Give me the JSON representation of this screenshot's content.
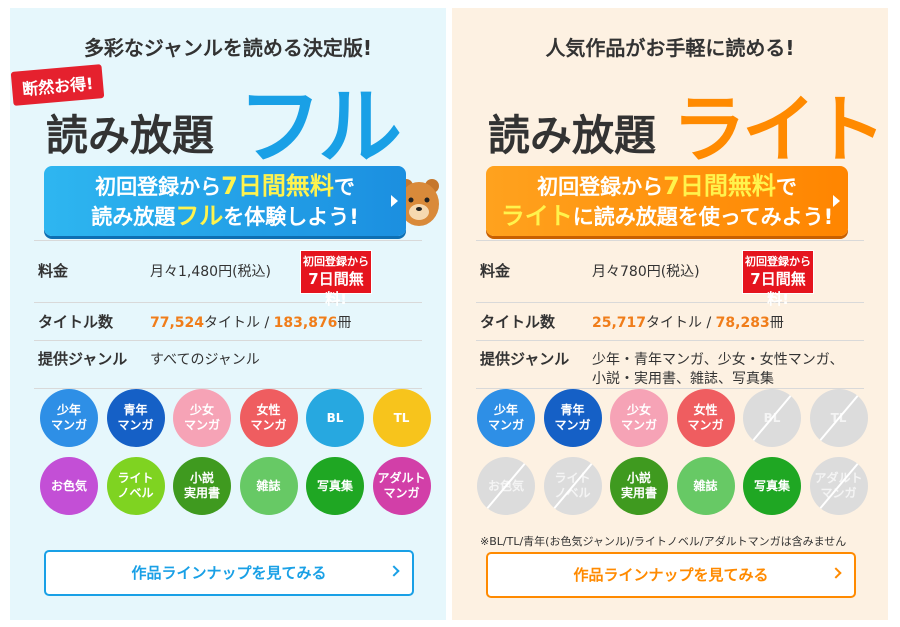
{
  "panels": [
    {
      "tagline": "多彩なジャンルを読める決定版!",
      "badge": "断然お得!",
      "title": "読み放題",
      "title_accent": "フル",
      "cta": {
        "line1": [
          {
            "text": "初回登録から"
          },
          {
            "text": "7日間",
            "highlight": true
          },
          {
            "text": "無料",
            "highlight": true
          },
          {
            "text": "で"
          }
        ],
        "line2": [
          {
            "text": "読み放題"
          },
          {
            "text": "フル",
            "highlight": true
          },
          {
            "text": "を体験しよう!"
          }
        ]
      },
      "price": {
        "label": "料金",
        "value": "月々1,480円(税込)",
        "badge": [
          "初回登録から",
          "7日間無料!"
        ]
      },
      "titles": {
        "label": "タイトル数",
        "count": "77,524",
        "unit1": "タイトル /",
        "volumes": "183,876",
        "unit2": "冊"
      },
      "genre": {
        "label": "提供ジャンル",
        "value": [
          "すべてのジャンル"
        ]
      },
      "genres": [
        {
          "lines": [
            "少年",
            "マンガ"
          ],
          "color": "#2e8fe6"
        },
        {
          "lines": [
            "青年",
            "マンガ"
          ],
          "color": "#1560c6"
        },
        {
          "lines": [
            "少女",
            "マンガ"
          ],
          "color": "#f6a3b6"
        },
        {
          "lines": [
            "女性",
            "マンガ"
          ],
          "color": "#ef5d60"
        },
        {
          "lines": [
            "BL"
          ],
          "color": "#27a8e0"
        },
        {
          "lines": [
            "TL"
          ],
          "color": "#f7c41c"
        },
        {
          "lines": [
            "お色気"
          ],
          "color": "#c34fd6"
        },
        {
          "lines": [
            "ライト",
            "ノベル"
          ],
          "color": "#7fd321"
        },
        {
          "lines": [
            "小説",
            "実用書"
          ],
          "color": "#3f9a1f"
        },
        {
          "lines": [
            "雑誌"
          ],
          "color": "#67c965"
        },
        {
          "lines": [
            "写真集"
          ],
          "color": "#1fa723"
        },
        {
          "lines": [
            "アダルト",
            "マンガ"
          ],
          "color": "#d23fa8"
        }
      ],
      "button": "作品ラインナップを見てみる"
    },
    {
      "tagline": "人気作品がお手軽に読める!",
      "title": "読み放題",
      "title_accent": "ライト",
      "cta": {
        "line1": [
          {
            "text": "初回登録から"
          },
          {
            "text": "7日間",
            "highlight": true
          },
          {
            "text": "無料",
            "highlight": true
          },
          {
            "text": "で"
          }
        ],
        "line2": [
          {
            "text": "ライト",
            "highlight": true
          },
          {
            "text": "に読み放題を使ってみよう!"
          }
        ]
      },
      "price": {
        "label": "料金",
        "value": "月々780円(税込)",
        "badge": [
          "初回登録から",
          "7日間無料!"
        ]
      },
      "titles": {
        "label": "タイトル数",
        "count": "25,717",
        "unit1": "タイトル /",
        "volumes": "78,283",
        "unit2": "冊"
      },
      "genre": {
        "label": "提供ジャンル",
        "value": [
          "少年・青年マンガ、少女・女性マンガ、",
          "小説・実用書、雑誌、写真集"
        ]
      },
      "genres": [
        {
          "lines": [
            "少年",
            "マンガ"
          ],
          "color": "#2e8fe6"
        },
        {
          "lines": [
            "青年",
            "マンガ"
          ],
          "color": "#1560c6"
        },
        {
          "lines": [
            "少女",
            "マンガ"
          ],
          "color": "#f6a3b6"
        },
        {
          "lines": [
            "女性",
            "マンガ"
          ],
          "color": "#ef5d60"
        },
        {
          "lines": [
            "BL"
          ],
          "color": "#dcdcdc",
          "disabled": true
        },
        {
          "lines": [
            "TL"
          ],
          "color": "#dcdcdc",
          "disabled": true
        },
        {
          "lines": [
            "お色気"
          ],
          "color": "#dcdcdc",
          "disabled": true
        },
        {
          "lines": [
            "ライト",
            "ノベル"
          ],
          "color": "#dcdcdc",
          "disabled": true
        },
        {
          "lines": [
            "小説",
            "実用書"
          ],
          "color": "#3f9a1f"
        },
        {
          "lines": [
            "雑誌"
          ],
          "color": "#67c965"
        },
        {
          "lines": [
            "写真集"
          ],
          "color": "#1fa723"
        },
        {
          "lines": [
            "アダルト",
            "マンガ"
          ],
          "color": "#dcdcdc",
          "disabled": true
        }
      ],
      "note": "※BL/TL/青年(お色気ジャンル)/ライトノベル/アダルトマンガは含みません",
      "button": "作品ラインナップを見てみる"
    }
  ]
}
